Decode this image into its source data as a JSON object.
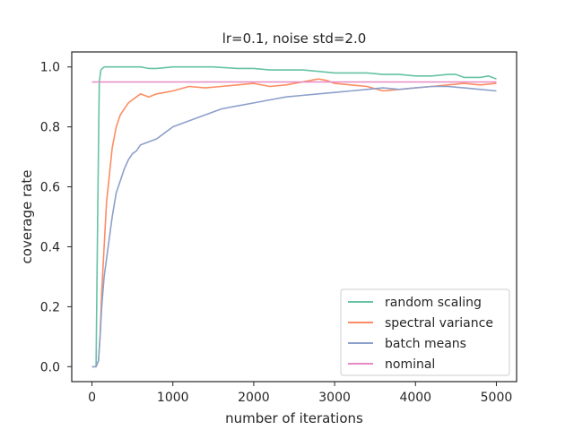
{
  "chart_data": {
    "type": "line",
    "title": "lr=0.1, noise std=2.0",
    "xlabel": "number of iterations",
    "ylabel": "coverage rate",
    "xlim": [
      -250,
      5250
    ],
    "ylim": [
      -0.05,
      1.05
    ],
    "xticks": [
      "0",
      "1000",
      "2000",
      "3000",
      "4000",
      "5000"
    ],
    "yticks": [
      "0.0",
      "0.2",
      "0.4",
      "0.6",
      "0.8",
      "1.0"
    ],
    "grid": false,
    "legend_position": "lower-right",
    "series": [
      {
        "name": "random scaling",
        "color": "#66c2a5",
        "x": [
          0,
          50,
          70,
          90,
          110,
          150,
          200,
          400,
          600,
          700,
          800,
          1000,
          1200,
          1500,
          1800,
          2000,
          2200,
          2400,
          2600,
          2800,
          3000,
          3200,
          3400,
          3600,
          3800,
          4000,
          4200,
          4400,
          4500,
          4600,
          4800,
          4900,
          5000
        ],
        "y": [
          0.0,
          0.0,
          0.5,
          0.95,
          0.99,
          1.0,
          1.0,
          1.0,
          1.0,
          0.995,
          0.995,
          1.0,
          1.0,
          1.0,
          0.995,
          0.995,
          0.99,
          0.99,
          0.99,
          0.985,
          0.98,
          0.98,
          0.98,
          0.975,
          0.975,
          0.97,
          0.97,
          0.975,
          0.975,
          0.965,
          0.965,
          0.97,
          0.96
        ]
      },
      {
        "name": "spectral variance",
        "color": "#fc8d62",
        "x": [
          0,
          50,
          80,
          100,
          120,
          150,
          180,
          200,
          250,
          300,
          350,
          400,
          450,
          500,
          550,
          600,
          700,
          800,
          900,
          1000,
          1200,
          1400,
          1600,
          1800,
          2000,
          2200,
          2400,
          2600,
          2700,
          2800,
          2900,
          3000,
          3200,
          3400,
          3600,
          3800,
          4000,
          4200,
          4400,
          4600,
          4800,
          5000
        ],
        "y": [
          0.0,
          0.0,
          0.02,
          0.1,
          0.25,
          0.4,
          0.55,
          0.6,
          0.73,
          0.8,
          0.84,
          0.86,
          0.88,
          0.89,
          0.9,
          0.91,
          0.9,
          0.91,
          0.915,
          0.92,
          0.935,
          0.93,
          0.935,
          0.94,
          0.945,
          0.935,
          0.94,
          0.95,
          0.955,
          0.96,
          0.955,
          0.945,
          0.94,
          0.935,
          0.92,
          0.925,
          0.93,
          0.935,
          0.94,
          0.945,
          0.94,
          0.945
        ]
      },
      {
        "name": "batch means",
        "color": "#8da0cb",
        "x": [
          0,
          50,
          80,
          100,
          120,
          150,
          200,
          250,
          300,
          350,
          400,
          450,
          500,
          550,
          600,
          700,
          800,
          900,
          1000,
          1100,
          1200,
          1400,
          1600,
          1800,
          2000,
          2200,
          2400,
          2600,
          2800,
          3000,
          3200,
          3400,
          3600,
          3800,
          4000,
          4200,
          4400,
          4600,
          4800,
          5000
        ],
        "y": [
          0.0,
          0.0,
          0.02,
          0.1,
          0.2,
          0.3,
          0.4,
          0.5,
          0.58,
          0.62,
          0.66,
          0.69,
          0.71,
          0.72,
          0.74,
          0.75,
          0.76,
          0.78,
          0.8,
          0.81,
          0.82,
          0.84,
          0.86,
          0.87,
          0.88,
          0.89,
          0.9,
          0.905,
          0.91,
          0.915,
          0.92,
          0.925,
          0.93,
          0.925,
          0.93,
          0.935,
          0.935,
          0.93,
          0.925,
          0.92
        ]
      },
      {
        "name": "nominal",
        "color": "#e78ac3",
        "x": [
          0,
          5000
        ],
        "y": [
          0.95,
          0.95
        ]
      }
    ]
  }
}
